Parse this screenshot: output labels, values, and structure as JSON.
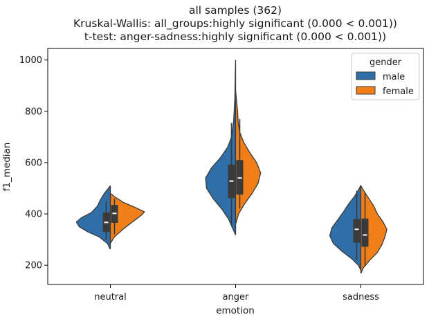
{
  "colors": {
    "male": "#2f6ea6",
    "female": "#f07f19",
    "outline": "#3a3a3a",
    "box": "#3a3a3a",
    "median": "#ffffff"
  },
  "chart_data": {
    "type": "violin",
    "title_lines": [
      "all samples (362)",
      "Kruskal-Wallis: all_groups:highly significant (0.000 < 0.001))",
      "t-test: anger-sadness:highly significant (0.000 < 0.001))"
    ],
    "xlabel": "emotion",
    "ylabel": "f1_median",
    "ylim": [
      125,
      1045
    ],
    "yticks": [
      200,
      400,
      600,
      800,
      1000
    ],
    "categories": [
      "neutral",
      "anger",
      "sadness"
    ],
    "legend": {
      "title": "gender",
      "position": "top-right",
      "entries": [
        "male",
        "female"
      ]
    },
    "series": [
      {
        "name": "male",
        "violins": [
          {
            "category": "neutral",
            "profile": [
              [
                262,
                0.0
              ],
              [
                285,
                0.06
              ],
              [
                310,
                0.22
              ],
              [
                330,
                0.45
              ],
              [
                350,
                0.62
              ],
              [
                368,
                0.68
              ],
              [
                385,
                0.58
              ],
              [
                405,
                0.38
              ],
              [
                430,
                0.26
              ],
              [
                455,
                0.2
              ],
              [
                480,
                0.12
              ],
              [
                500,
                0.04
              ],
              [
                510,
                0.0
              ]
            ],
            "box": {
              "q1": 330,
              "q3": 405,
              "whisker_low": 300,
              "whisker_high": 450,
              "median": 367
            }
          },
          {
            "category": "anger",
            "profile": [
              [
                318,
                0.0
              ],
              [
                340,
                0.05
              ],
              [
                380,
                0.14
              ],
              [
                420,
                0.28
              ],
              [
                460,
                0.45
              ],
              [
                500,
                0.58
              ],
              [
                540,
                0.6
              ],
              [
                580,
                0.48
              ],
              [
                620,
                0.3
              ],
              [
                660,
                0.16
              ],
              [
                700,
                0.08
              ],
              [
                760,
                0.04
              ],
              [
                850,
                0.015
              ],
              [
                950,
                0.006
              ],
              [
                1000,
                0.0
              ]
            ],
            "box": {
              "q1": 462,
              "q3": 592,
              "whisker_low": 355,
              "whisker_high": 755,
              "median": 528
            }
          },
          {
            "category": "sadness",
            "profile": [
              [
                180,
                0.0
              ],
              [
                200,
                0.05
              ],
              [
                225,
                0.18
              ],
              [
                255,
                0.38
              ],
              [
                285,
                0.55
              ],
              [
                315,
                0.62
              ],
              [
                345,
                0.58
              ],
              [
                380,
                0.45
              ],
              [
                410,
                0.34
              ],
              [
                440,
                0.24
              ],
              [
                470,
                0.12
              ],
              [
                500,
                0.03
              ],
              [
                512,
                0.0
              ]
            ],
            "box": {
              "q1": 288,
              "q3": 380,
              "whisker_low": 220,
              "whisker_high": 490,
              "median": 340
            }
          }
        ]
      },
      {
        "name": "female",
        "violins": [
          {
            "category": "neutral",
            "profile": [
              [
                285,
                0.0
              ],
              [
                310,
                0.08
              ],
              [
                340,
                0.25
              ],
              [
                370,
                0.45
              ],
              [
                395,
                0.62
              ],
              [
                408,
                0.68
              ],
              [
                425,
                0.5
              ],
              [
                445,
                0.26
              ],
              [
                465,
                0.1
              ],
              [
                480,
                0.0
              ]
            ],
            "box": {
              "q1": 365,
              "q3": 435,
              "whisker_low": 320,
              "whisker_high": 460,
              "median": 402
            }
          },
          {
            "category": "anger",
            "profile": [
              [
                360,
                0.0
              ],
              [
                400,
                0.06
              ],
              [
                440,
                0.18
              ],
              [
                480,
                0.33
              ],
              [
                520,
                0.45
              ],
              [
                560,
                0.5
              ],
              [
                600,
                0.42
              ],
              [
                640,
                0.28
              ],
              [
                680,
                0.16
              ],
              [
                720,
                0.08
              ],
              [
                760,
                0.05
              ],
              [
                800,
                0.04
              ],
              [
                840,
                0.02
              ],
              [
                880,
                0.0
              ]
            ],
            "box": {
              "q1": 475,
              "q3": 610,
              "whisker_low": 420,
              "whisker_high": 770,
              "median": 540
            }
          },
          {
            "category": "sadness",
            "profile": [
              [
                168,
                0.0
              ],
              [
                190,
                0.05
              ],
              [
                220,
                0.18
              ],
              [
                250,
                0.33
              ],
              [
                280,
                0.42
              ],
              [
                310,
                0.48
              ],
              [
                340,
                0.52
              ],
              [
                370,
                0.44
              ],
              [
                400,
                0.33
              ],
              [
                430,
                0.26
              ],
              [
                460,
                0.16
              ],
              [
                490,
                0.06
              ],
              [
                510,
                0.0
              ]
            ],
            "box": {
              "q1": 272,
              "q3": 382,
              "whisker_low": 200,
              "whisker_high": 480,
              "median": 318
            }
          }
        ]
      }
    ]
  }
}
